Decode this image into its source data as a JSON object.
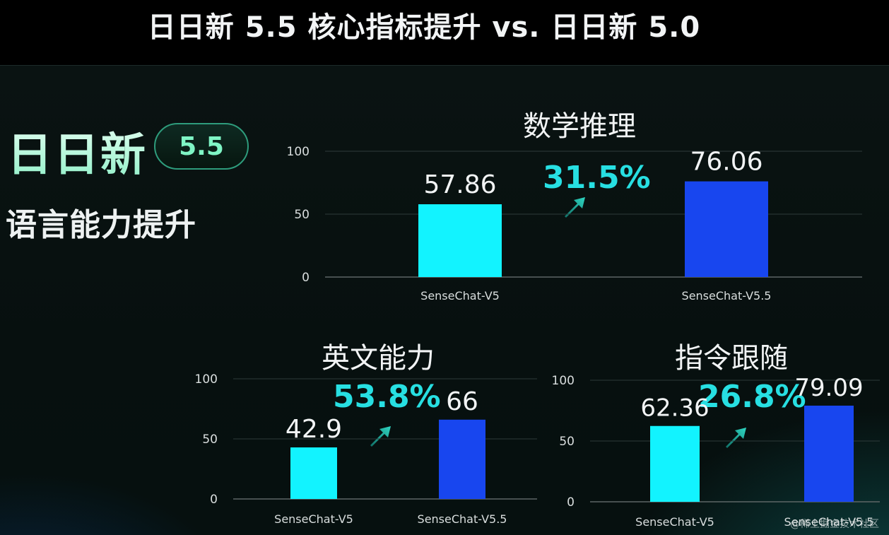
{
  "page_title": "日日新 5.5 核心指标提升 vs. 日日新 5.0",
  "brand": {
    "name": "日日新",
    "version": "5.5",
    "subtitle": "语言能力提升"
  },
  "colors": {
    "v5": "#12f3ff",
    "v55": "#1846ef",
    "accent": "#27dfe2"
  },
  "watermark": "@稀土掘金技术社区",
  "chart_data": [
    {
      "type": "bar",
      "title": "数学推理",
      "categories": [
        "SenseChat-V5",
        "SenseChat-V5.5"
      ],
      "values": [
        57.86,
        76.06
      ],
      "value_labels": [
        "57.86",
        "76.06"
      ],
      "increase": "31.5%",
      "yticks": [
        "100",
        "50",
        "0"
      ],
      "ylim": [
        0,
        100
      ],
      "grid": true
    },
    {
      "type": "bar",
      "title": "英文能力",
      "categories": [
        "SenseChat-V5",
        "SenseChat-V5.5"
      ],
      "values": [
        42.9,
        66
      ],
      "value_labels": [
        "42.9",
        "66"
      ],
      "increase": "53.8%",
      "yticks": [
        "100",
        "50",
        "0"
      ],
      "ylim": [
        0,
        100
      ],
      "grid": true
    },
    {
      "type": "bar",
      "title": "指令跟随",
      "categories": [
        "SenseChat-V5",
        "SenseChat-V5.5"
      ],
      "values": [
        62.36,
        79.09
      ],
      "value_labels": [
        "62.36",
        "79.09"
      ],
      "increase": "26.8%",
      "yticks": [
        "100",
        "50",
        "0"
      ],
      "ylim": [
        0,
        100
      ],
      "grid": true
    }
  ]
}
